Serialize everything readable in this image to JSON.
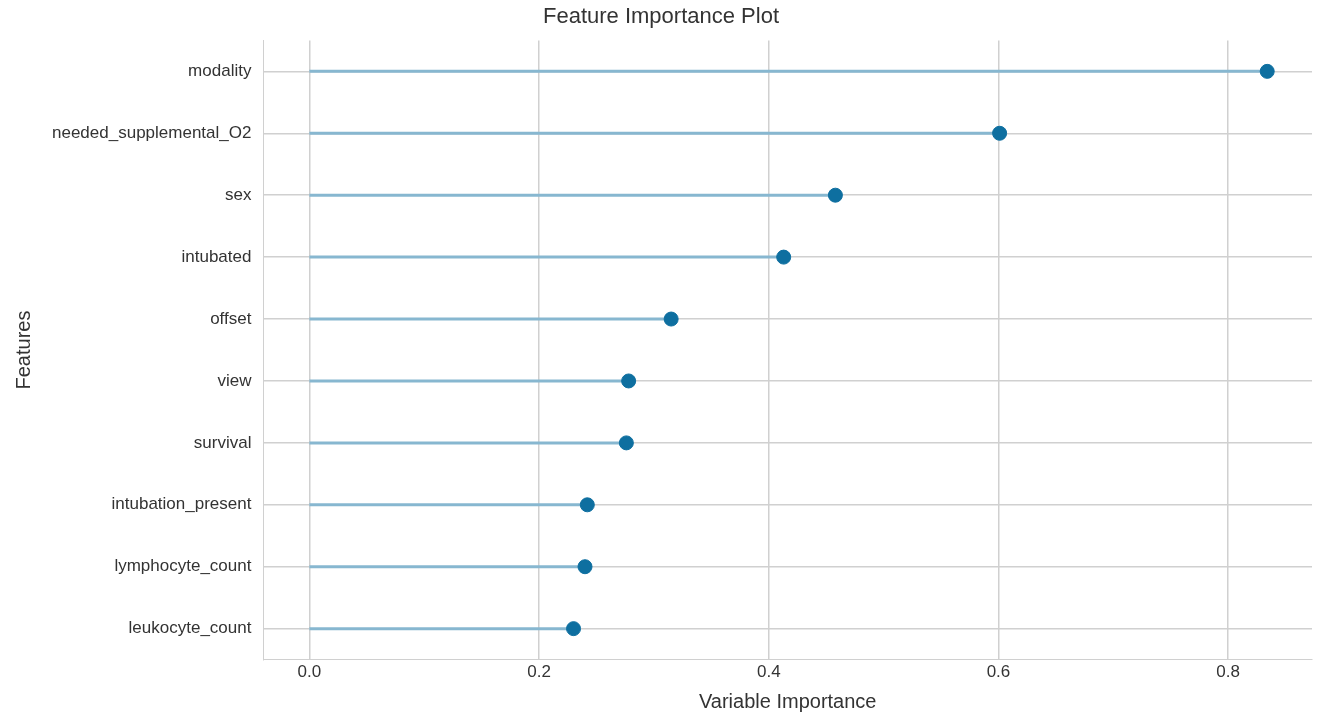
{
  "chart_data": {
    "type": "lollipop",
    "orientation": "horizontal",
    "title": "Feature Importance Plot",
    "xlabel": "Variable Importance",
    "ylabel": "Features",
    "categories": [
      "modality",
      "needed_supplemental_O2",
      "sex",
      "intubated",
      "offset",
      "view",
      "survival",
      "intubation_present",
      "lymphocyte_count",
      "leukocyte_count"
    ],
    "series": [
      {
        "color": "#0e6fa0",
        "values": [
          0.834,
          0.601,
          0.458,
          0.413,
          0.315,
          0.278,
          0.276,
          0.242,
          0.24,
          0.23
        ]
      }
    ],
    "xlim": [
      -0.04,
      0.873
    ],
    "xticks": [
      {
        "value": 0,
        "label": "0.0"
      },
      {
        "value": 0.2,
        "label": "0.2"
      },
      {
        "value": 0.4,
        "label": "0.4"
      },
      {
        "value": 0.6,
        "label": "0.6"
      },
      {
        "value": 0.8,
        "label": "0.8"
      }
    ],
    "grid": true,
    "legend": false,
    "marker": "circle"
  }
}
